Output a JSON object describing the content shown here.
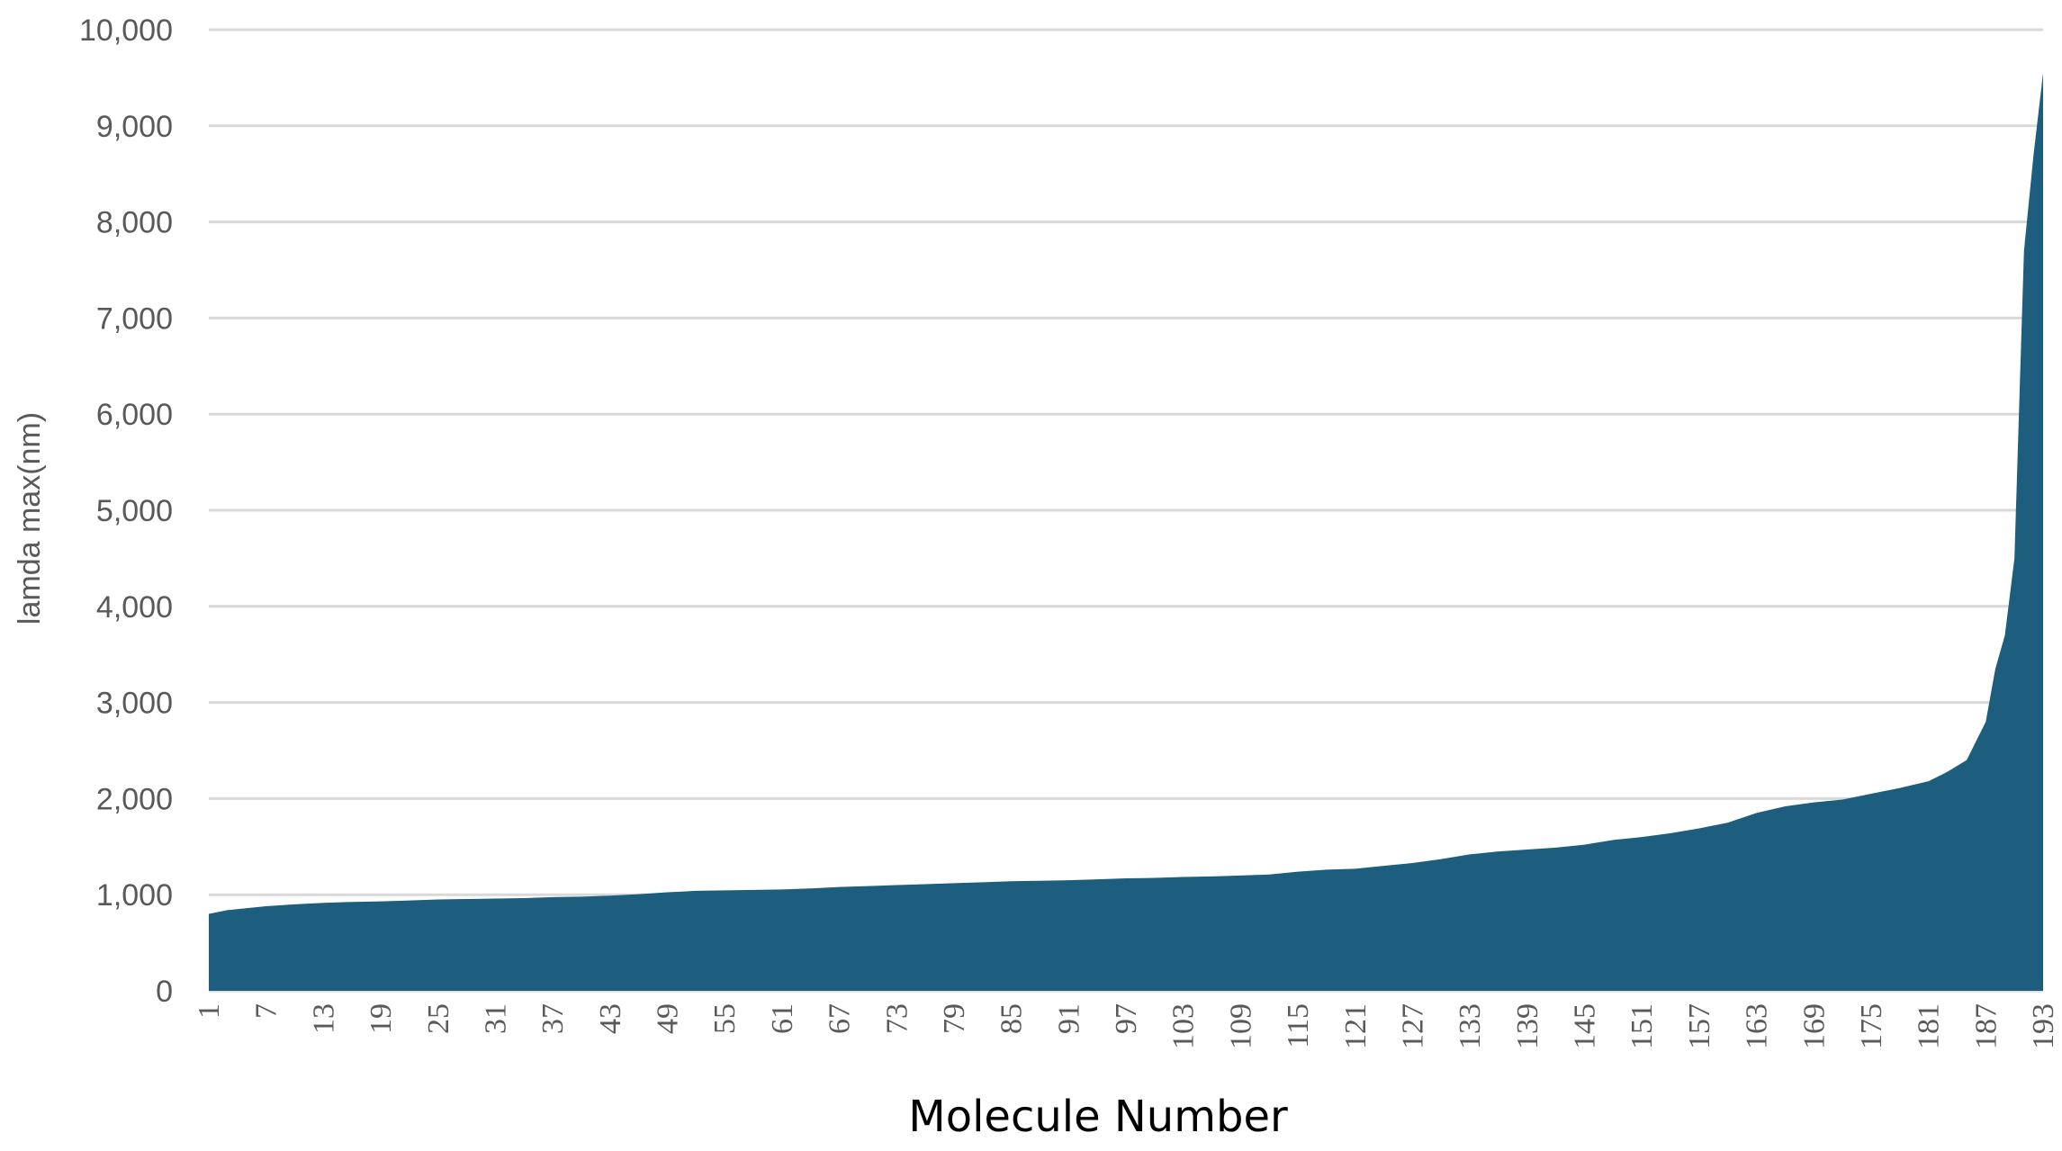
{
  "chart_data": {
    "type": "area",
    "xlabel": "Molecule Number",
    "ylabel": "lamda max(nm)",
    "ylim": [
      0,
      10000
    ],
    "yticks": [
      0,
      1000,
      2000,
      3000,
      4000,
      5000,
      6000,
      7000,
      8000,
      9000,
      10000
    ],
    "ytick_labels": [
      "0",
      "1,000",
      "2,000",
      "3,000",
      "4,000",
      "5,000",
      "6,000",
      "7,000",
      "8,000",
      "9,000",
      "10,000"
    ],
    "xlim": [
      1,
      193
    ],
    "xticks": [
      1,
      7,
      13,
      19,
      25,
      31,
      37,
      43,
      49,
      55,
      61,
      67,
      73,
      79,
      85,
      91,
      97,
      103,
      109,
      115,
      121,
      127,
      133,
      139,
      145,
      151,
      157,
      163,
      169,
      175,
      181,
      187,
      193
    ],
    "grid": true,
    "color": "#1d5e7f",
    "series": [
      {
        "points": [
          [
            1,
            800
          ],
          [
            3,
            840
          ],
          [
            5,
            860
          ],
          [
            7,
            880
          ],
          [
            10,
            900
          ],
          [
            13,
            915
          ],
          [
            16,
            925
          ],
          [
            19,
            930
          ],
          [
            22,
            940
          ],
          [
            25,
            950
          ],
          [
            28,
            955
          ],
          [
            31,
            960
          ],
          [
            34,
            965
          ],
          [
            37,
            975
          ],
          [
            40,
            980
          ],
          [
            43,
            990
          ],
          [
            46,
            1005
          ],
          [
            49,
            1025
          ],
          [
            52,
            1040
          ],
          [
            55,
            1045
          ],
          [
            58,
            1050
          ],
          [
            61,
            1055
          ],
          [
            64,
            1065
          ],
          [
            67,
            1080
          ],
          [
            70,
            1090
          ],
          [
            73,
            1100
          ],
          [
            76,
            1110
          ],
          [
            79,
            1120
          ],
          [
            82,
            1130
          ],
          [
            85,
            1140
          ],
          [
            88,
            1145
          ],
          [
            91,
            1150
          ],
          [
            94,
            1160
          ],
          [
            97,
            1170
          ],
          [
            100,
            1175
          ],
          [
            103,
            1185
          ],
          [
            106,
            1190
          ],
          [
            109,
            1200
          ],
          [
            112,
            1210
          ],
          [
            115,
            1240
          ],
          [
            118,
            1260
          ],
          [
            121,
            1270
          ],
          [
            124,
            1300
          ],
          [
            127,
            1330
          ],
          [
            130,
            1370
          ],
          [
            133,
            1420
          ],
          [
            136,
            1450
          ],
          [
            139,
            1470
          ],
          [
            142,
            1490
          ],
          [
            145,
            1520
          ],
          [
            148,
            1570
          ],
          [
            151,
            1600
          ],
          [
            154,
            1640
          ],
          [
            157,
            1690
          ],
          [
            160,
            1750
          ],
          [
            163,
            1850
          ],
          [
            166,
            1920
          ],
          [
            169,
            1960
          ],
          [
            172,
            1990
          ],
          [
            175,
            2050
          ],
          [
            178,
            2110
          ],
          [
            181,
            2180
          ],
          [
            183,
            2280
          ],
          [
            185,
            2400
          ],
          [
            187,
            2800
          ],
          [
            188,
            3350
          ],
          [
            189,
            3700
          ],
          [
            190,
            4500
          ],
          [
            191,
            7700
          ],
          [
            192,
            8700
          ],
          [
            193,
            9550
          ]
        ]
      }
    ]
  }
}
